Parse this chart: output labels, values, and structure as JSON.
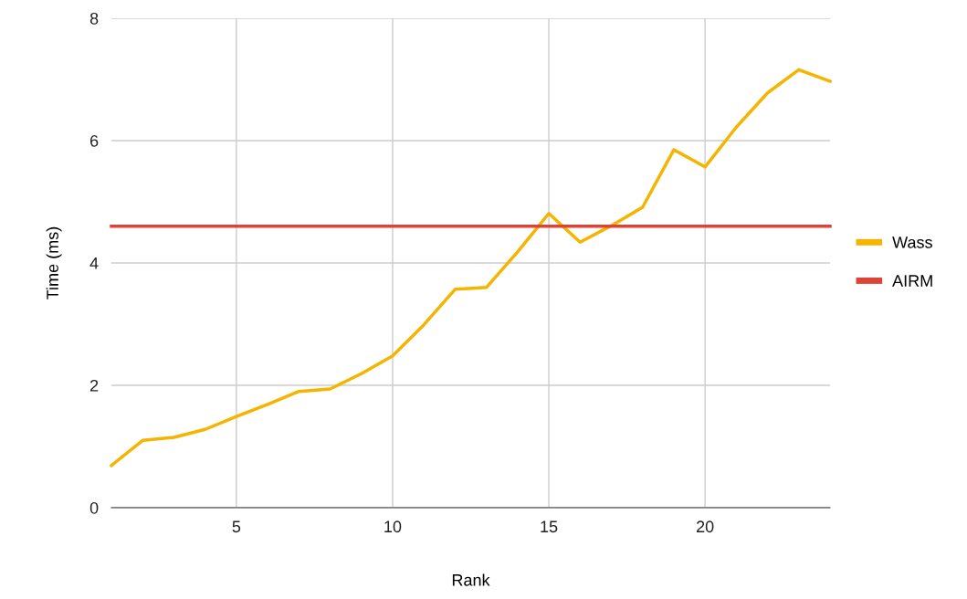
{
  "chart_data": {
    "type": "line",
    "xlabel": "Rank",
    "ylabel": "Time (ms)",
    "xlim": [
      1,
      24
    ],
    "xticks": [
      5,
      10,
      15,
      20
    ],
    "ylim": [
      0,
      8
    ],
    "yticks": [
      0,
      2,
      4,
      6,
      8
    ],
    "grid": true,
    "legend": "right",
    "series": [
      {
        "name": "Wass",
        "color": "#f4b400",
        "x": [
          1,
          2,
          3,
          4,
          5,
          6,
          7,
          8,
          9,
          10,
          11,
          12,
          13,
          14,
          15,
          16,
          17,
          18,
          19,
          20,
          21,
          22,
          23,
          24
        ],
        "values": [
          0.69,
          1.1,
          1.15,
          1.28,
          1.49,
          1.69,
          1.9,
          1.94,
          2.19,
          2.48,
          2.99,
          3.57,
          3.6,
          4.18,
          4.81,
          4.34,
          4.61,
          4.91,
          5.85,
          5.57,
          6.22,
          6.78,
          7.16,
          6.97
        ]
      },
      {
        "name": "AIRM",
        "color": "#db4437",
        "x": [
          1,
          24
        ],
        "values": [
          4.6,
          4.6
        ]
      }
    ]
  }
}
